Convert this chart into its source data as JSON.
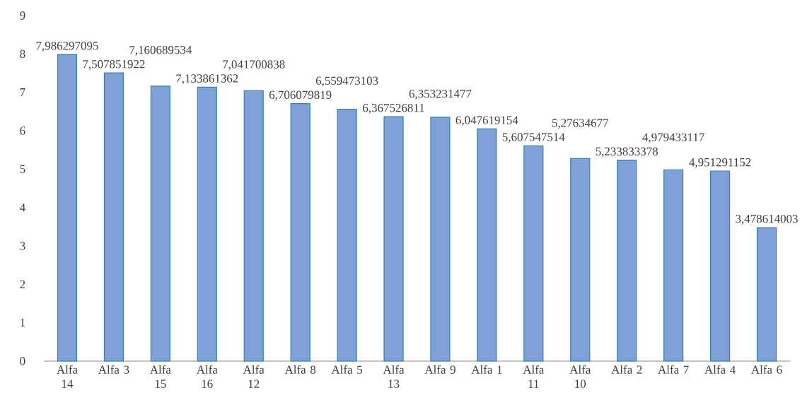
{
  "chart_data": {
    "type": "bar",
    "categories": [
      "Alfa 14",
      "Alfa 3",
      "Alfa 15",
      "Alfa 16",
      "Alfa 12",
      "Alfa 8",
      "Alfa 5",
      "Alfa 13",
      "Alfa 9",
      "Alfa 1",
      "Alfa 11",
      "Alfa 10",
      "Alfa 2",
      "Alfa 7",
      "Alfa 4",
      "Alfa 6"
    ],
    "values": [
      7.986297095,
      7.507851922,
      7.160689534,
      7.133861362,
      7.041700838,
      6.706079819,
      6.559473103,
      6.367526811,
      6.353231477,
      6.047619154,
      5.607547514,
      5.27634677,
      5.233833378,
      4.979433117,
      4.951291152,
      3.478614003
    ],
    "value_labels": [
      "7,986297095",
      "7,507851922",
      "7,160689534",
      "7,133861362",
      "7,041700838",
      "6,706079819",
      "6,559473103",
      "6,367526811",
      "6,353231477",
      "6,047619154",
      "5,607547514",
      "5,27634677",
      "5,233833378",
      "4,979433117",
      "4,951291152",
      "3,478614003"
    ],
    "color": "#7fa0d8",
    "ylim": [
      0,
      9
    ],
    "yticks": [
      0,
      1,
      2,
      3,
      4,
      5,
      6,
      7,
      8,
      9
    ]
  }
}
